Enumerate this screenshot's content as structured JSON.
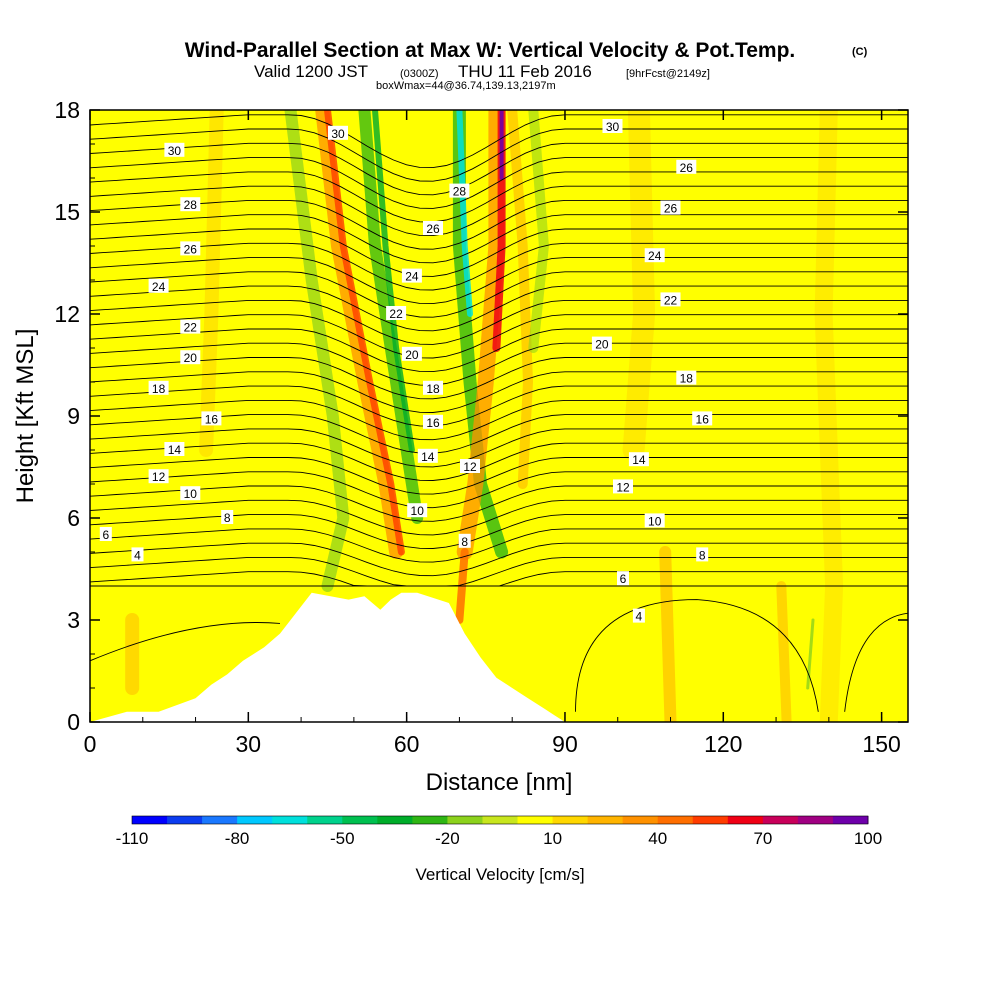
{
  "title": "Wind-Parallel Section at Max W: Vertical Velocity & Pot.Temp.",
  "title_mark": "(C)",
  "subtitle": {
    "valid": "Valid 1200 JST",
    "utc": "(0300Z)",
    "date": "THU 11 Feb 2016",
    "fcst": "[9hrFcst@2149z]",
    "box": "boxWmax=44@36.74,139.13,2197m"
  },
  "chart_data": {
    "type": "heatmap",
    "xlabel": "Distance [nm]",
    "ylabel": "Height [Kft MSL]",
    "xlim": [
      0,
      155
    ],
    "ylim": [
      0,
      18
    ],
    "xticks": [
      0,
      30,
      60,
      90,
      120,
      150
    ],
    "yticks": [
      0,
      3,
      6,
      9,
      12,
      15,
      18
    ],
    "colorbar": {
      "label": "Vertical Velocity [cm/s]",
      "tick_values": [
        -110,
        -80,
        -50,
        -20,
        10,
        40,
        70,
        100
      ],
      "range": [
        -110,
        100
      ],
      "colors": [
        "#0000ff",
        "#0b3cf0",
        "#1a78ff",
        "#00c8ff",
        "#00e0dc",
        "#00d28c",
        "#00c050",
        "#00ad2a",
        "#2fb614",
        "#8cd21c",
        "#c8e61e",
        "#ffff00",
        "#ffd700",
        "#ffb400",
        "#ff9100",
        "#ff6e00",
        "#ff3c00",
        "#f00014",
        "#c8005a",
        "#a00082",
        "#6e00aa"
      ]
    },
    "contours_theta": {
      "units": "Potential temperature (labels)",
      "labels": [
        {
          "text": "30",
          "x": 47,
          "y": 17.3
        },
        {
          "text": "30",
          "x": 16,
          "y": 16.8
        },
        {
          "text": "30",
          "x": 99,
          "y": 17.5
        },
        {
          "text": "28",
          "x": 70,
          "y": 15.6
        },
        {
          "text": "28",
          "x": 19,
          "y": 15.2
        },
        {
          "text": "26",
          "x": 113,
          "y": 16.3
        },
        {
          "text": "26",
          "x": 65,
          "y": 14.5
        },
        {
          "text": "26",
          "x": 19,
          "y": 13.9
        },
        {
          "text": "26",
          "x": 110,
          "y": 15.1
        },
        {
          "text": "24",
          "x": 61,
          "y": 13.1
        },
        {
          "text": "24",
          "x": 13,
          "y": 12.8
        },
        {
          "text": "24",
          "x": 107,
          "y": 13.7
        },
        {
          "text": "22",
          "x": 58,
          "y": 12.0
        },
        {
          "text": "22",
          "x": 19,
          "y": 11.6
        },
        {
          "text": "22",
          "x": 110,
          "y": 12.4
        },
        {
          "text": "20",
          "x": 61,
          "y": 10.8
        },
        {
          "text": "20",
          "x": 19,
          "y": 10.7
        },
        {
          "text": "20",
          "x": 97,
          "y": 11.1
        },
        {
          "text": "18",
          "x": 65,
          "y": 9.8
        },
        {
          "text": "18",
          "x": 13,
          "y": 9.8
        },
        {
          "text": "18",
          "x": 113,
          "y": 10.1
        },
        {
          "text": "16",
          "x": 65,
          "y": 8.8
        },
        {
          "text": "16",
          "x": 23,
          "y": 8.9
        },
        {
          "text": "16",
          "x": 116,
          "y": 8.9
        },
        {
          "text": "14",
          "x": 64,
          "y": 7.8
        },
        {
          "text": "14",
          "x": 16,
          "y": 8.0
        },
        {
          "text": "14",
          "x": 104,
          "y": 7.7
        },
        {
          "text": "12",
          "x": 72,
          "y": 7.5
        },
        {
          "text": "12",
          "x": 13,
          "y": 7.2
        },
        {
          "text": "12",
          "x": 101,
          "y": 6.9
        },
        {
          "text": "10",
          "x": 62,
          "y": 6.2
        },
        {
          "text": "10",
          "x": 19,
          "y": 6.7
        },
        {
          "text": "10",
          "x": 107,
          "y": 5.9
        },
        {
          "text": "8",
          "x": 71,
          "y": 5.3
        },
        {
          "text": "8",
          "x": 26,
          "y": 6.0
        },
        {
          "text": "8",
          "x": 116,
          "y": 4.9
        },
        {
          "text": "6",
          "x": 3,
          "y": 5.5
        },
        {
          "text": "6",
          "x": 101,
          "y": 4.2
        },
        {
          "text": "4",
          "x": 9,
          "y": 4.9
        },
        {
          "text": "4",
          "x": 104,
          "y": 3.1
        }
      ]
    },
    "terrain": {
      "description_free": true,
      "profile_x": [
        0,
        7,
        13,
        20,
        23,
        26,
        29,
        33,
        36,
        39,
        42,
        49,
        52,
        55,
        57,
        59,
        62,
        68,
        71,
        74,
        77,
        80,
        83,
        86,
        88,
        90,
        155
      ],
      "profile_y": [
        0,
        0.3,
        0.3,
        0.7,
        1.1,
        1.4,
        1.8,
        2.2,
        2.6,
        3.2,
        3.8,
        3.6,
        3.7,
        3.3,
        3.6,
        3.8,
        3.8,
        3.5,
        2.6,
        1.9,
        1.3,
        1.0,
        0.7,
        0.4,
        0.2,
        0,
        0
      ]
    }
  }
}
